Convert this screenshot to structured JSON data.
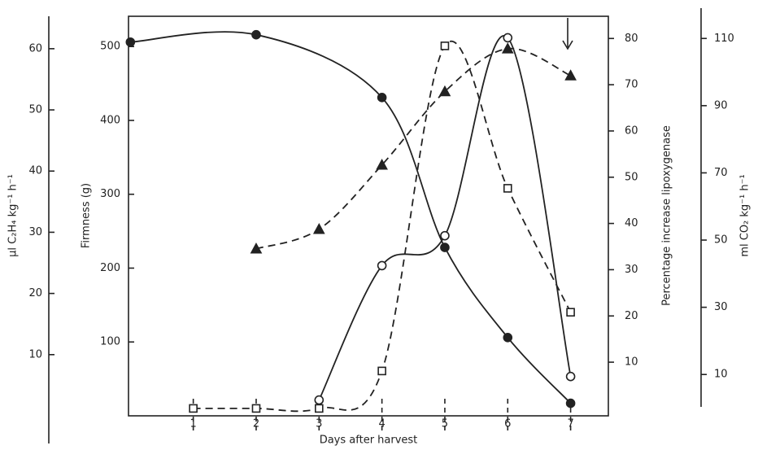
{
  "chart_data": {
    "type": "line",
    "xlabel": "Days after harvest",
    "xlim": [
      -0.03,
      7.6
    ],
    "xticks": [
      1,
      2,
      3,
      4,
      5,
      6,
      7
    ],
    "ylabel": "Firmness (g)",
    "ylim": [
      0,
      541
    ],
    "yticks": [
      100,
      200,
      300,
      400,
      500
    ],
    "y2label": "Percentage increase lipoxygenase",
    "y2lim": [
      -1.6,
      84.8
    ],
    "y2ticks": [
      10,
      20,
      30,
      40,
      50,
      60,
      70,
      80
    ],
    "y3label": "μl C₂H₄ kg⁻¹ h⁻¹",
    "y3lim": [
      0,
      65.3
    ],
    "y3ticks": [
      10,
      20,
      30,
      40,
      50,
      60
    ],
    "y4label": "ml CO₂ kg⁻¹ h⁻¹",
    "y4lim": [
      -2.3,
      116.6
    ],
    "y4ticks": [
      10,
      30,
      50,
      70,
      90,
      110
    ],
    "series": [
      {
        "axis": "y",
        "color": "#222222",
        "marker": "filled-circle",
        "dashed": false,
        "x": [
          0,
          2,
          4,
          5,
          6,
          7
        ],
        "values": [
          506,
          516,
          431,
          228,
          106,
          17
        ]
      },
      {
        "axis": "y3",
        "color": "#222222",
        "marker": "filled-triangle",
        "dashed": true,
        "x": [
          2,
          3,
          4,
          5,
          6,
          7
        ],
        "values": [
          27.3,
          30.5,
          41,
          53,
          60,
          55.6
        ]
      },
      {
        "axis": "y2",
        "color": "#222222",
        "marker": "open-square",
        "dashed": true,
        "x": [
          1,
          2,
          3,
          4,
          5,
          6,
          7
        ],
        "values": [
          0,
          0,
          0,
          8.1,
          78.4,
          47.6,
          20.8
        ]
      },
      {
        "axis": "y4",
        "color": "#222222",
        "marker": "open-circle",
        "dashed": false,
        "x": [
          3,
          4,
          5,
          6,
          7
        ],
        "values": [
          2.4,
          42.4,
          51.3,
          110.2,
          9.4
        ]
      }
    ]
  }
}
